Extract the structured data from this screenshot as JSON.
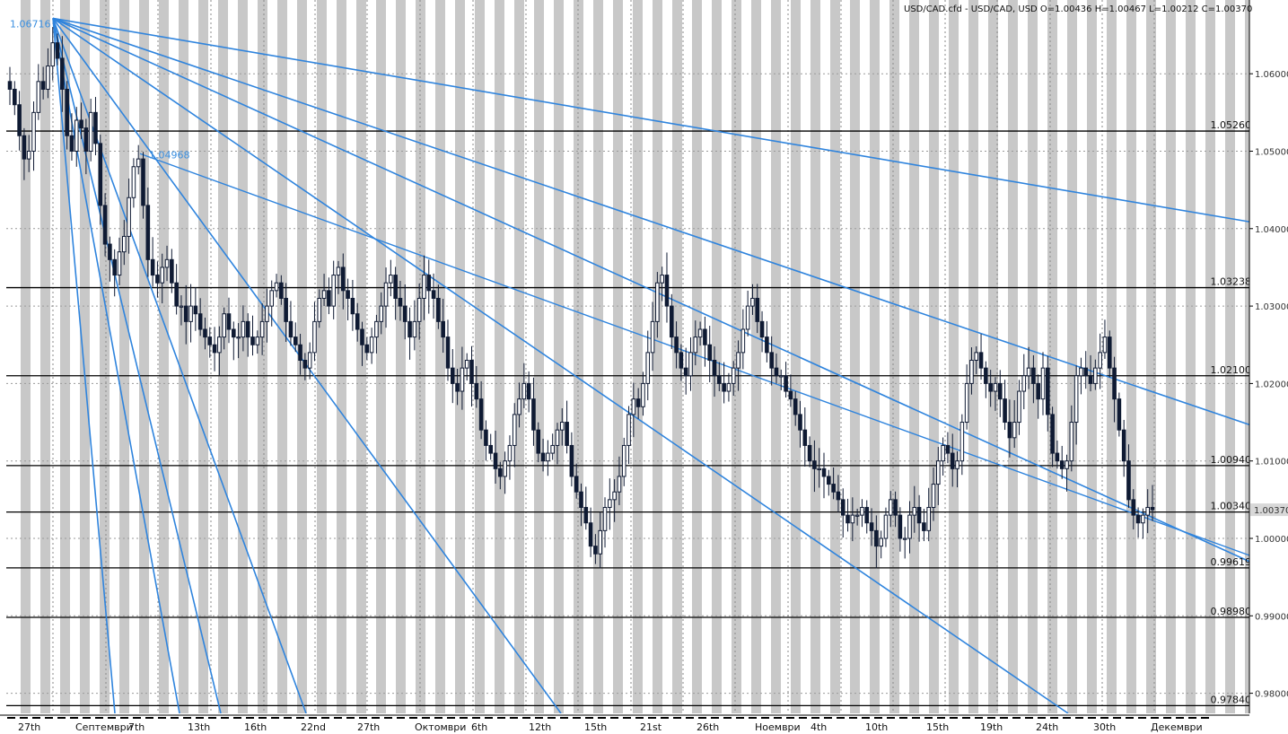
{
  "header": {
    "title": "USD/CAD.cfd - USD/CAD, USD O=1.00436 H=1.00467 L=1.00212 C=1.00370"
  },
  "colors": {
    "background": "#ffffff",
    "stripe": "#c8c8c8",
    "candle": "#0f1a33",
    "fan_line": "#2f84dd",
    "level_line": "#000000",
    "last_price_box": "#d8d8d8"
  },
  "chart_data": {
    "type": "line",
    "instrument": "USD/CAD.cfd",
    "ylim": [
      0.9765,
      1.0675
    ],
    "y_ticks": [
      1.06,
      1.05,
      1.04,
      1.03,
      1.02,
      1.01,
      1.0,
      0.99,
      0.98
    ],
    "y_tick_labels": [
      "1.06000",
      "1.05000",
      "1.04000",
      "1.03000",
      "1.02000",
      "1.01000",
      "1.00000",
      "0.99000",
      "0.98000"
    ],
    "x_labels": [
      "27th",
      "Септември",
      "7th",
      "13th",
      "16th",
      "22nd",
      "27th",
      "Октомври",
      "6th",
      "12th",
      "15th",
      "21st",
      "26th",
      "Ноември",
      "4th",
      "10th",
      "15th",
      "19th",
      "24th",
      "30th",
      "Декември"
    ],
    "last_price": 1.0037,
    "last_price_label": "1.00370",
    "ohlc_last": {
      "open": 1.00436,
      "high": 1.00467,
      "low": 1.00212,
      "close": 1.0037
    },
    "levels": [
      {
        "value": 1.0526,
        "label": "1.05260"
      },
      {
        "value": 1.03238,
        "label": "1.03238"
      },
      {
        "value": 1.021,
        "label": "1.02100"
      },
      {
        "value": 1.0094,
        "label": "1.00940"
      },
      {
        "value": 1.0034,
        "label": "1.00340"
      },
      {
        "value": 0.99619,
        "label": "0.99619"
      },
      {
        "value": 0.9898,
        "label": "0.98980"
      },
      {
        "value": 0.9784,
        "label": "0.97840"
      }
    ],
    "fan": {
      "anchor_value": 1.06716,
      "anchor_label": "1.06716",
      "secondary_value": 1.04968,
      "secondary_label": "1.04968"
    },
    "series": [
      {
        "values": [
          1.058,
          1.056,
          1.052,
          1.049,
          1.05,
          1.055,
          1.059,
          1.058,
          1.061,
          1.064,
          1.062,
          1.058,
          1.052,
          1.05,
          1.054,
          1.053,
          1.05,
          1.055,
          1.051,
          1.043,
          1.038,
          1.036,
          1.034,
          1.037,
          1.039,
          1.044,
          1.048,
          1.049,
          1.043,
          1.036,
          1.034,
          1.033,
          1.035,
          1.036,
          1.033,
          1.03,
          1.03,
          1.028,
          1.03,
          1.029,
          1.027,
          1.026,
          1.025,
          1.024,
          1.026,
          1.029,
          1.027,
          1.026,
          1.026,
          1.028,
          1.026,
          1.025,
          1.026,
          1.028,
          1.03,
          1.032,
          1.033,
          1.031,
          1.028,
          1.026,
          1.025,
          1.023,
          1.022,
          1.024,
          1.028,
          1.031,
          1.032,
          1.03,
          1.034,
          1.035,
          1.032,
          1.031,
          1.029,
          1.027,
          1.025,
          1.024,
          1.026,
          1.028,
          1.03,
          1.033,
          1.034,
          1.031,
          1.03,
          1.028,
          1.026,
          1.028,
          1.031,
          1.034,
          1.032,
          1.031,
          1.028,
          1.026,
          1.022,
          1.02,
          1.019,
          1.022,
          1.023,
          1.02,
          1.018,
          1.014,
          1.012,
          1.011,
          1.009,
          1.008,
          1.01,
          1.012,
          1.016,
          1.018,
          1.02,
          1.018,
          1.014,
          1.011,
          1.01,
          1.011,
          1.012,
          1.014,
          1.015,
          1.012,
          1.008,
          1.006,
          1.004,
          1.002,
          0.999,
          0.998,
          1.001,
          1.004,
          1.005,
          1.006,
          1.008,
          1.012,
          1.016,
          1.018,
          1.017,
          1.02,
          1.024,
          1.028,
          1.033,
          1.034,
          1.03,
          1.026,
          1.024,
          1.022,
          1.021,
          1.024,
          1.026,
          1.027,
          1.025,
          1.023,
          1.021,
          1.02,
          1.019,
          1.02,
          1.022,
          1.024,
          1.027,
          1.03,
          1.031,
          1.028,
          1.026,
          1.024,
          1.022,
          1.021,
          1.021,
          1.019,
          1.018,
          1.016,
          1.014,
          1.012,
          1.01,
          1.009,
          1.009,
          1.008,
          1.007,
          1.006,
          1.005,
          1.003,
          1.002,
          1.003,
          1.003,
          1.004,
          1.002,
          1.001,
          0.999,
          1.0,
          1.003,
          1.005,
          1.003,
          1.0,
          1.0,
          1.003,
          1.004,
          1.002,
          1.001,
          1.004,
          1.007,
          1.01,
          1.012,
          1.011,
          1.009,
          1.01,
          1.015,
          1.02,
          1.023,
          1.024,
          1.022,
          1.02,
          1.019,
          1.02,
          1.018,
          1.015,
          1.013,
          1.015,
          1.019,
          1.021,
          1.022,
          1.02,
          1.018,
          1.022,
          1.016,
          1.011,
          1.01,
          1.009,
          1.01,
          1.015,
          1.021,
          1.022,
          1.021,
          1.02,
          1.022,
          1.024,
          1.026,
          1.022,
          1.018,
          1.014,
          1.01,
          1.005,
          1.003,
          1.002,
          1.003,
          1.004,
          1.0037
        ]
      }
    ],
    "legend": "none",
    "grid": true
  }
}
